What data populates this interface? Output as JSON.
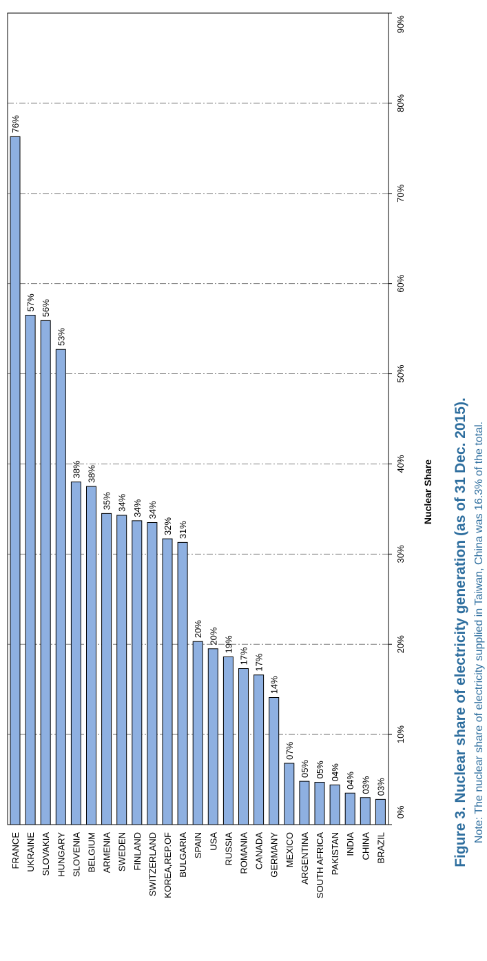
{
  "chart_data": {
    "type": "bar",
    "orientation": "horizontal",
    "categories": [
      "FRANCE",
      "UKRAINE",
      "SLOVAKIA",
      "HUNGARY",
      "SLOVENIA",
      "BELGIUM",
      "ARMENIA",
      "SWEDEN",
      "FINLAND",
      "SWITZERLAND",
      "KOREA,REP.OF",
      "BULGARIA",
      "SPAIN",
      "USA",
      "RUSSIA",
      "ROMANIA",
      "CANADA",
      "GERMANY",
      "MEXICO",
      "ARGENTINA",
      "SOUTH AFRICA",
      "PAKISTAN",
      "INDIA",
      "CHINA",
      "BRAZIL"
    ],
    "values": [
      76.3,
      56.5,
      55.9,
      52.7,
      38.0,
      37.5,
      34.5,
      34.3,
      33.7,
      33.5,
      31.7,
      31.3,
      20.3,
      19.5,
      18.6,
      17.3,
      16.6,
      14.1,
      6.8,
      4.8,
      4.7,
      4.4,
      3.5,
      3.0,
      2.8
    ],
    "data_labels": [
      "76%",
      "57%",
      "56%",
      "53%",
      "38%",
      "38%",
      "35%",
      "34%",
      "34%",
      "34%",
      "32%",
      "31%",
      "20%",
      "20%",
      "19%",
      "17%",
      "17%",
      "14%",
      "07%",
      "05%",
      "05%",
      "04%",
      "04%",
      "03%",
      "03%"
    ],
    "ylabel": "Nuclear Share",
    "ylim": [
      0,
      90
    ],
    "ticks": [
      "0%",
      "10%",
      "20%",
      "30%",
      "40%",
      "50%",
      "60%",
      "70%",
      "80%",
      "90%"
    ],
    "grid": true,
    "bar_color": "#8eb0e1"
  },
  "caption": {
    "title": "Figure 3. Nuclear share of electricity generation (as of 31 Dec. 2015).",
    "note": "Note: The nuclear share of electricity supplied in Taiwan, China was 16.3% of the total."
  }
}
